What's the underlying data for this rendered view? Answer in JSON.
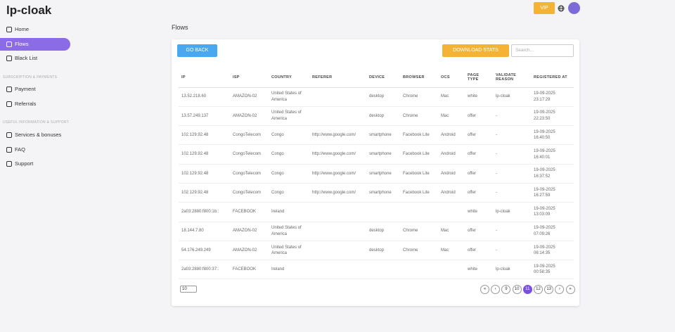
{
  "header": {
    "logo": "lp-cloak",
    "vip": "VIP"
  },
  "sidebar": {
    "items": [
      "Home",
      "Flows",
      "Black List"
    ],
    "sections": [
      {
        "title": "SUBSCRIPTION & PAYMENTS",
        "items": [
          "Payment",
          "Referrals"
        ]
      },
      {
        "title": "USEFUL INFORMATION & SUPPORT",
        "items": [
          "Services & bonuses",
          "FAQ",
          "Support"
        ]
      }
    ]
  },
  "page": {
    "title": "Flows",
    "go_back": "GO BACK",
    "download": "DOWNLOAD STATS",
    "search": "Search..."
  },
  "table": {
    "columns": [
      "IP",
      "ISP",
      "COUNTRY",
      "REFERER",
      "DEVICE",
      "BROWSER",
      "OCS",
      "PAGE TYPE",
      "VALIDATE REASON",
      "REGISTERED AT"
    ],
    "rows": [
      [
        "13.52.218.60",
        "AMAZON-02",
        "United States of America",
        null,
        "desktop",
        "Chrome",
        "Mac",
        "white",
        "lp-cloak",
        "19-09-2025 23:17:29"
      ],
      [
        "13.57.249.137",
        "AMAZON-02",
        "United States of America",
        null,
        "desktop",
        "Chrome",
        "Mac",
        "offer",
        "-",
        "19-09-2025 22:23:50"
      ],
      [
        "102.129.92.48",
        "CongoTelecom",
        "Congo",
        "http://www.google.com/",
        "smartphone",
        "Facebook Lite",
        "Android",
        "offer",
        "-",
        "19-09-2025 16:40:50"
      ],
      [
        "102.129.92.48",
        "CongoTelecom",
        "Congo",
        "http://www.google.com/",
        "smartphone",
        "Facebook Lite",
        "Android",
        "offer",
        "-",
        "19-09-2025 16:40:01"
      ],
      [
        "102.129.92.48",
        "CongoTelecom",
        "Congo",
        "http://www.google.com/",
        "smartphone",
        "Facebook Lite",
        "Android",
        "offer",
        "-",
        "19-09-2025 16:37:52"
      ],
      [
        "102.129.92.48",
        "CongoTelecom",
        "Congo",
        "http://www.google.com/",
        "smartphone",
        "Facebook Lite",
        "Android",
        "offer",
        "-",
        "19-09-2025 16:27:59"
      ],
      [
        "2a03:2880:f800:1b::",
        "FACEBOOK",
        "Ireland",
        null,
        null,
        null,
        null,
        "white",
        "lp-cloak",
        "19-09-2025 13:03:09"
      ],
      [
        "18.144.7.80",
        "AMAZON-02",
        "United States of America",
        null,
        "desktop",
        "Chrome",
        "Mac",
        "offer",
        "-",
        "19-09-2025 07:09:26"
      ],
      [
        "54.176.249.249",
        "AMAZON-02",
        "United States of America",
        null,
        "desktop",
        "Chrome",
        "Mac",
        "offer",
        "-",
        "19-09-2025 06:14:35"
      ],
      [
        "2a03:2880:f800:37::",
        "FACEBOOK",
        "Ireland",
        null,
        null,
        null,
        null,
        "white",
        "lp-cloak",
        "19-09-2025 00:58:35"
      ]
    ]
  },
  "pagination": {
    "page_size": "10",
    "buttons": [
      "«",
      "‹",
      "9",
      "10",
      "11",
      "12",
      "13",
      "›",
      "»"
    ]
  }
}
